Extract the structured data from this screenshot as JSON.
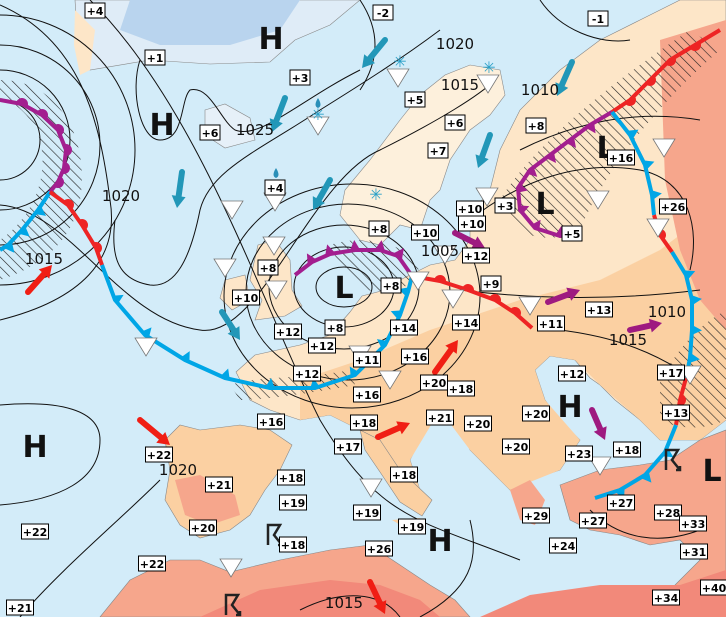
{
  "map": {
    "colors": {
      "sea": "#d3ecf9",
      "land": "#fde6c8",
      "land_warm": "#fbd0a2",
      "land_hot": "#f6a68c",
      "land_very_hot": "#f2897a",
      "ice": "#b9d4ee",
      "cold_front": "#00a6e6",
      "warm_front": "#ee2424",
      "occluded_front": "#a31e8f",
      "cold_advection_arrow": "#2297b8",
      "warm_advection_arrow": "#f01e14",
      "neutral_arrow": "#9e1a80",
      "isobar": "#111111"
    },
    "pressure_systems": [
      {
        "type": "H"
      },
      {
        "type": "H"
      },
      {
        "type": "L"
      },
      {
        "type": "L"
      },
      {
        "type": "L"
      },
      {
        "type": "H"
      },
      {
        "type": "H"
      },
      {
        "type": "H"
      },
      {
        "type": "L"
      }
    ],
    "isobar_labels": [
      "1020",
      "1015",
      "1010",
      "1025",
      "1020",
      "1015",
      "1005",
      "1010",
      "1015",
      "1020",
      "1015"
    ],
    "temperatures": [
      "+4",
      "+1",
      "+3",
      "+6",
      "+4",
      "-2",
      "-1",
      "+5",
      "+6",
      "+7",
      "+8",
      "+16",
      "+10",
      "+10",
      "+3",
      "+5",
      "+26",
      "+8",
      "+10",
      "+12",
      "+8",
      "+10",
      "+8",
      "+9",
      "+12",
      "+8",
      "+12",
      "+14",
      "+11",
      "+16",
      "+14",
      "+11",
      "+13",
      "+12",
      "+16",
      "+20",
      "+18",
      "+16",
      "+18",
      "+17",
      "+21",
      "+20",
      "+12",
      "+20",
      "+20",
      "+17",
      "+13",
      "+23",
      "+18",
      "+22",
      "+21",
      "+18",
      "+19",
      "+18",
      "+19",
      "+19",
      "+20",
      "+22",
      "+29",
      "+27",
      "+27",
      "+28",
      "+33",
      "+31",
      "+24",
      "+18",
      "+26",
      "+22",
      "+21",
      "+40",
      "+34"
    ],
    "weather_symbols": [
      "shower-icon",
      "snow-icon",
      "rain-icon",
      "thunderstorm-icon"
    ]
  }
}
